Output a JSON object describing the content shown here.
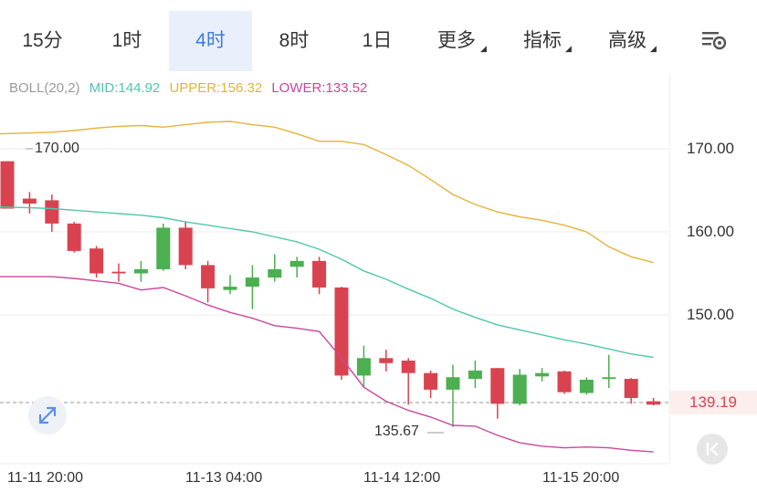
{
  "tabs": [
    {
      "label": "15分",
      "active": false
    },
    {
      "label": "1时",
      "active": false
    },
    {
      "label": "4时",
      "active": true
    },
    {
      "label": "8时",
      "active": false
    },
    {
      "label": "1日",
      "active": false
    },
    {
      "label": "更多",
      "active": false,
      "dropdown": true
    },
    {
      "label": "指标",
      "active": false,
      "dropdown": true
    },
    {
      "label": "高级",
      "active": false,
      "dropdown": true
    }
  ],
  "icons": {
    "menu": "menu-settings-icon",
    "expand": "expand-arrows-icon",
    "collapse": "collapse-left-icon"
  },
  "indicator": {
    "name": "BOLL(20,2)",
    "mid": "MID:144.92",
    "upper": "UPPER:156.32",
    "lower": "LOWER:133.52"
  },
  "colors": {
    "up": "#4caf50",
    "down": "#d9434f",
    "mid": "#4fc7ae",
    "upper": "#e6b23a",
    "lower": "#c9479e",
    "grid": "#ececec",
    "active_tab": "#3d7be0"
  },
  "chart_data": {
    "type": "candlestick",
    "indicator": "BOLL(20,2)",
    "ylim": [
      126,
      182
    ],
    "yticks": [
      "170.00",
      "160.00",
      "150.00"
    ],
    "xticks": [
      "11-11 20:00",
      "11-13 04:00",
      "11-14 12:00",
      "11-15 20:00"
    ],
    "current_price": "139.19",
    "annotations": {
      "high": "170.00",
      "low": "135.67"
    },
    "candles": [
      {
        "o": 168.5,
        "h": 168.5,
        "l": 163.0,
        "c": 162.8
      },
      {
        "o": 164.0,
        "h": 164.8,
        "l": 162.2,
        "c": 163.4
      },
      {
        "o": 163.8,
        "h": 164.5,
        "l": 160.0,
        "c": 161.0
      },
      {
        "o": 161.0,
        "h": 161.2,
        "l": 157.5,
        "c": 157.7
      },
      {
        "o": 158.0,
        "h": 158.3,
        "l": 154.5,
        "c": 155.0
      },
      {
        "o": 155.2,
        "h": 156.2,
        "l": 154.0,
        "c": 155.0
      },
      {
        "o": 155.0,
        "h": 156.5,
        "l": 154.0,
        "c": 155.5
      },
      {
        "o": 155.5,
        "h": 161.0,
        "l": 155.3,
        "c": 160.5
      },
      {
        "o": 160.5,
        "h": 161.2,
        "l": 155.5,
        "c": 156.0
      },
      {
        "o": 156.0,
        "h": 156.5,
        "l": 151.5,
        "c": 153.2
      },
      {
        "o": 153.0,
        "h": 154.8,
        "l": 152.5,
        "c": 153.4
      },
      {
        "o": 153.4,
        "h": 156.0,
        "l": 150.7,
        "c": 154.5
      },
      {
        "o": 154.5,
        "h": 157.3,
        "l": 154.0,
        "c": 155.5
      },
      {
        "o": 155.8,
        "h": 157.0,
        "l": 154.5,
        "c": 156.5
      },
      {
        "o": 156.5,
        "h": 157.0,
        "l": 152.5,
        "c": 153.3
      },
      {
        "o": 153.3,
        "h": 153.4,
        "l": 142.2,
        "c": 142.7
      },
      {
        "o": 142.7,
        "h": 146.3,
        "l": 141.3,
        "c": 144.8
      },
      {
        "o": 144.8,
        "h": 145.8,
        "l": 143.2,
        "c": 144.2
      },
      {
        "o": 144.5,
        "h": 144.8,
        "l": 139.2,
        "c": 143.0
      },
      {
        "o": 143.0,
        "h": 143.3,
        "l": 140.0,
        "c": 141.0
      },
      {
        "o": 141.0,
        "h": 144.0,
        "l": 136.5,
        "c": 142.5
      },
      {
        "o": 142.3,
        "h": 144.5,
        "l": 141.2,
        "c": 143.3
      },
      {
        "o": 143.6,
        "h": 143.6,
        "l": 137.5,
        "c": 139.3
      },
      {
        "o": 139.3,
        "h": 143.5,
        "l": 139.1,
        "c": 142.8
      },
      {
        "o": 142.6,
        "h": 143.6,
        "l": 142.0,
        "c": 143.0
      },
      {
        "o": 143.2,
        "h": 143.3,
        "l": 140.5,
        "c": 140.7
      },
      {
        "o": 140.6,
        "h": 142.5,
        "l": 140.4,
        "c": 142.2
      },
      {
        "o": 142.3,
        "h": 145.2,
        "l": 141.2,
        "c": 142.5
      },
      {
        "o": 142.3,
        "h": 142.4,
        "l": 139.3,
        "c": 140.0
      },
      {
        "o": 139.6,
        "h": 140.0,
        "l": 139.1,
        "c": 139.2
      }
    ],
    "mid": [
      163.0,
      162.9,
      162.8,
      162.6,
      162.4,
      162.2,
      162.0,
      161.7,
      161.2,
      160.8,
      160.4,
      160.0,
      159.4,
      158.8,
      157.9,
      156.7,
      155.3,
      154.3,
      153.1,
      152.0,
      150.7,
      149.7,
      148.8,
      148.2,
      147.6,
      147.0,
      146.5,
      145.9,
      145.3,
      144.9
    ],
    "upper": [
      171.8,
      171.9,
      172.0,
      172.2,
      172.5,
      172.7,
      172.8,
      172.6,
      172.9,
      173.2,
      173.3,
      172.9,
      172.6,
      171.8,
      170.9,
      170.9,
      170.5,
      169.3,
      168.0,
      166.3,
      164.5,
      163.3,
      162.4,
      161.8,
      161.4,
      160.8,
      160.0,
      158.2,
      157.0,
      156.3
    ],
    "lower": [
      154.6,
      154.6,
      154.6,
      154.4,
      154.1,
      153.8,
      153.0,
      153.3,
      152.3,
      151.2,
      150.3,
      149.6,
      148.7,
      148.4,
      148.0,
      144.8,
      141.3,
      139.6,
      138.5,
      137.7,
      136.7,
      136.6,
      135.5,
      134.6,
      134.2,
      134.0,
      134.1,
      134.0,
      133.7,
      133.5
    ]
  }
}
